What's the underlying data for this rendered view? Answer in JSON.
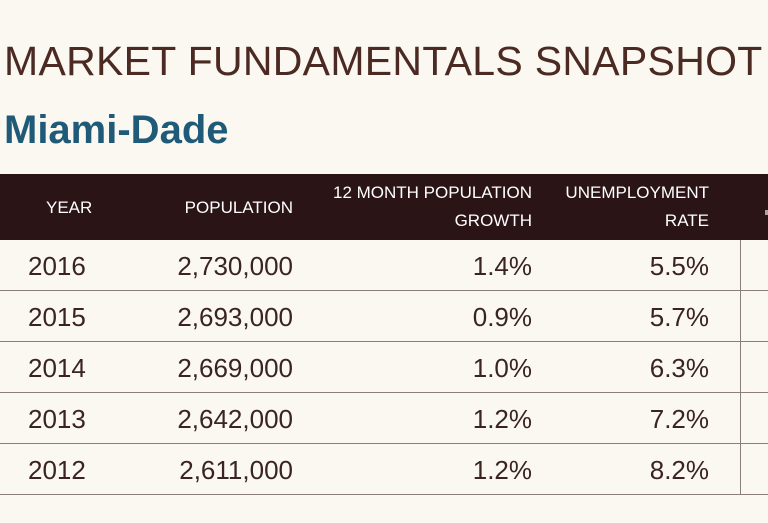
{
  "title": "MARKET FUNDAMENTALS SNAPSHOT",
  "subtitle": "Miami-Dade",
  "table": {
    "headers": {
      "year": "YEAR",
      "population": "POPULATION",
      "growth_line1": "12 MONTH POPULATION",
      "growth_line2": "GROWTH",
      "unemployment_line1": "UNEMPLOYMENT",
      "unemployment_line2": "RATE"
    },
    "rows": [
      {
        "year": "2016",
        "population": "2,730,000",
        "growth": "1.4%",
        "unemployment": "5.5%"
      },
      {
        "year": "2015",
        "population": "2,693,000",
        "growth": "0.9%",
        "unemployment": "5.7%"
      },
      {
        "year": "2014",
        "population": "2,669,000",
        "growth": "1.0%",
        "unemployment": "6.3%"
      },
      {
        "year": "2013",
        "population": "2,642,000",
        "growth": "1.2%",
        "unemployment": "7.2%"
      },
      {
        "year": "2012",
        "population": "2,611,000",
        "growth": "1.2%",
        "unemployment": "8.2%"
      }
    ]
  },
  "colors": {
    "background": "#fbf8f1",
    "header_bg": "#2b1416",
    "title": "#4a2a22",
    "subtitle": "#1f5a78"
  }
}
